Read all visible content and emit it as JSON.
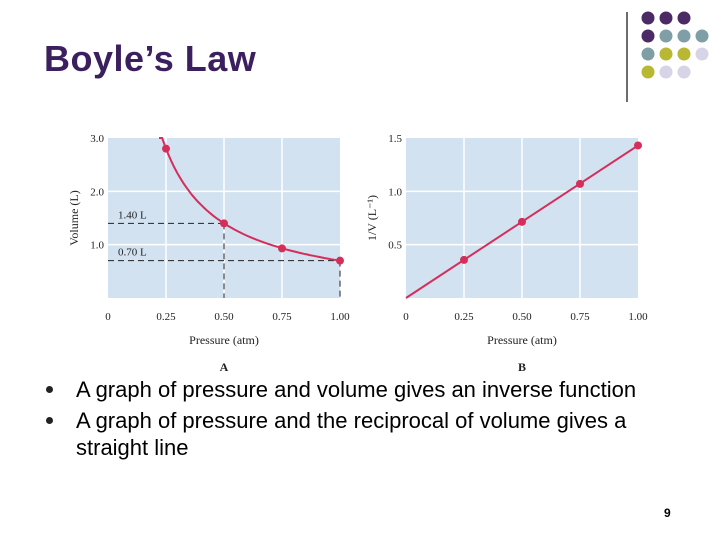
{
  "slide": {
    "title": "Boyle’s Law",
    "page_number": "9",
    "bullets": [
      "A graph of pressure and volume gives an inverse function",
      "A graph of pressure and the reciprocal of volume gives a straight line"
    ],
    "colors": {
      "title": "#3b1f5f",
      "dot_purple": "#4b2a66",
      "dot_teal": "#7f9ea6",
      "dot_olive": "#b8b832",
      "dot_lavender": "#d6d4e6"
    }
  },
  "chart_data": [
    {
      "type": "line",
      "title": "",
      "xlabel": "Pressure (atm)",
      "ylabel": "Volume (L)",
      "xlim": [
        0,
        1.0
      ],
      "ylim": [
        0,
        3.0
      ],
      "x_ticks": [
        "0",
        "0.25",
        "0.50",
        "0.75",
        "1.00"
      ],
      "y_ticks": [
        "1.0",
        "2.0",
        "3.0"
      ],
      "grid": true,
      "series_color": "#d42e5b",
      "points": [
        {
          "x": 0.25,
          "y": 2.8
        },
        {
          "x": 0.5,
          "y": 1.4
        },
        {
          "x": 0.75,
          "y": 0.93
        },
        {
          "x": 1.0,
          "y": 0.7
        }
      ],
      "annotations": [
        {
          "text": "1.40 L",
          "x": 0.5,
          "y": 1.4
        },
        {
          "text": "0.70 L",
          "x": 1.0,
          "y": 0.7
        }
      ],
      "panel_label": "A"
    },
    {
      "type": "line",
      "title": "",
      "xlabel": "Pressure (atm)",
      "ylabel": "1/V (L⁻¹)",
      "xlim": [
        0,
        1.0
      ],
      "ylim": [
        0,
        1.5
      ],
      "x_ticks": [
        "0",
        "0.25",
        "0.50",
        "0.75",
        "1.00"
      ],
      "y_ticks": [
        "0.5",
        "1.0",
        "1.5"
      ],
      "grid": true,
      "series_color": "#d42e5b",
      "points": [
        {
          "x": 0.25,
          "y": 0.357
        },
        {
          "x": 0.5,
          "y": 0.714
        },
        {
          "x": 0.75,
          "y": 1.07
        },
        {
          "x": 1.0,
          "y": 1.43
        }
      ],
      "panel_label": "B"
    }
  ]
}
